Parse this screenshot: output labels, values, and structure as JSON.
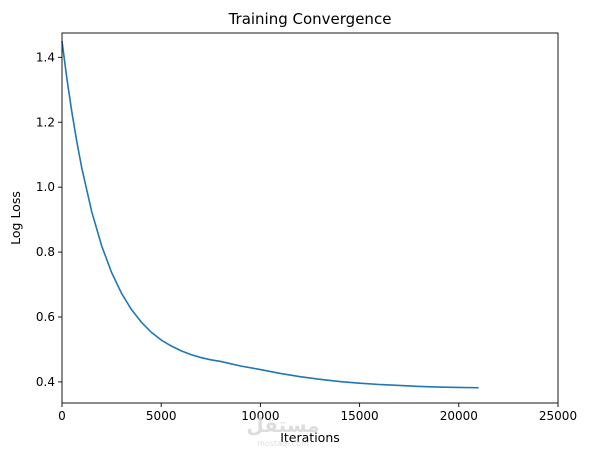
{
  "chart_data": {
    "type": "line",
    "title": "Training Convergence",
    "xlabel": "Iterations",
    "ylabel": "Log Loss",
    "xlim": [
      0,
      25000
    ],
    "ylim": [
      0.335,
      1.475
    ],
    "xticks": [
      0,
      5000,
      10000,
      15000,
      20000,
      25000
    ],
    "xtick_labels": [
      "0",
      "5000",
      "10000",
      "15000",
      "20000",
      "25000"
    ],
    "yticks": [
      0.4,
      0.6,
      0.8,
      1.0,
      1.2,
      1.4
    ],
    "ytick_labels": [
      "0.4",
      "0.6",
      "0.8",
      "1.0",
      "1.2",
      "1.4"
    ],
    "grid": false,
    "legend": "none",
    "series": [
      {
        "color": "#1f77b4",
        "x": [
          0,
          250,
          500,
          750,
          1000,
          1500,
          2000,
          2500,
          3000,
          3500,
          4000,
          4500,
          5000,
          5500,
          6000,
          6500,
          7000,
          7500,
          8000,
          9000,
          10000,
          11000,
          12000,
          13000,
          14000,
          15000,
          16000,
          17000,
          18000,
          19000,
          20000,
          21000
        ],
        "y": [
          1.45,
          1.333,
          1.23,
          1.139,
          1.058,
          0.924,
          0.819,
          0.737,
          0.673,
          0.623,
          0.584,
          0.553,
          0.529,
          0.511,
          0.496,
          0.484,
          0.475,
          0.468,
          0.463,
          0.449,
          0.438,
          0.426,
          0.416,
          0.408,
          0.401,
          0.396,
          0.392,
          0.389,
          0.386,
          0.384,
          0.383,
          0.382
        ]
      }
    ]
  },
  "watermark": {
    "text": "مستقل",
    "subtext": "mostaql.com"
  }
}
